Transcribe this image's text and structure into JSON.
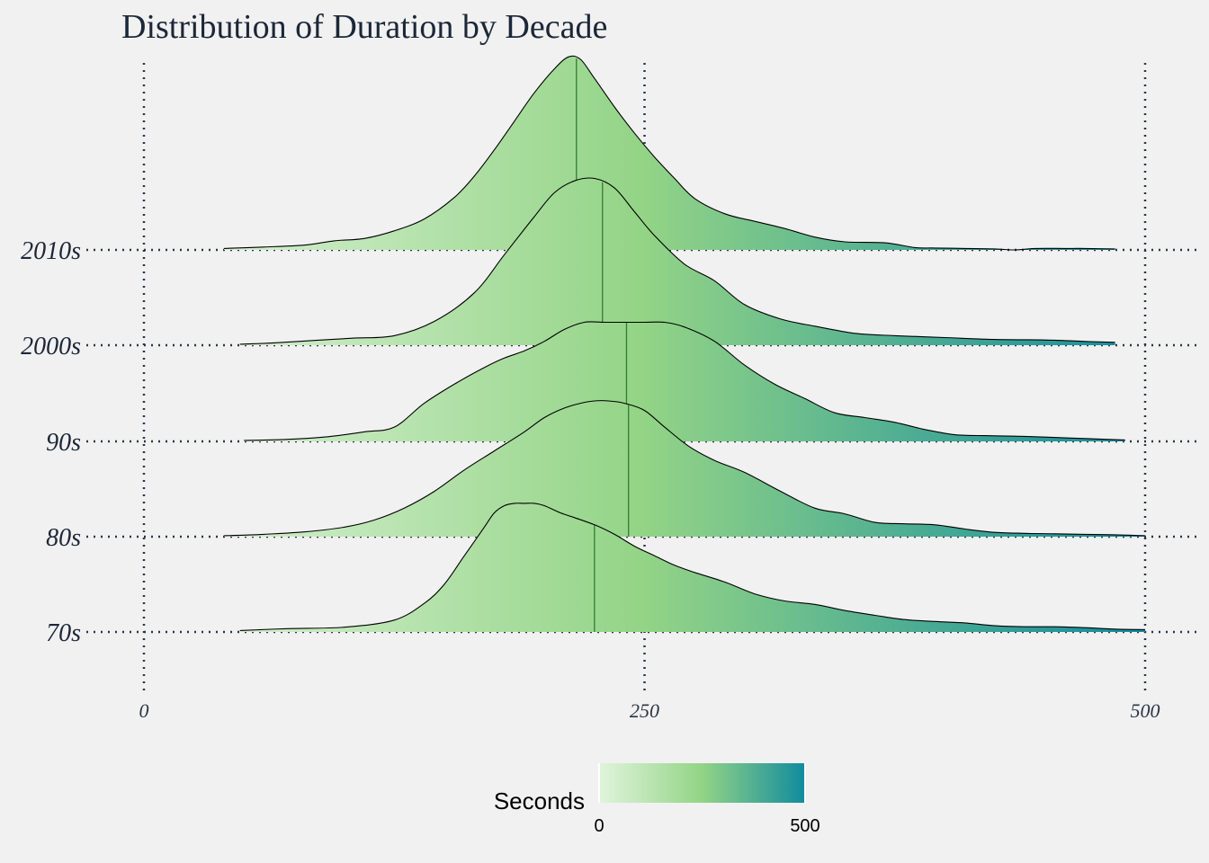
{
  "chart_data": {
    "type": "ridgeline",
    "title": "Distribution of Duration by Decade",
    "xlabel": "",
    "ylabel": "",
    "xlim": [
      0,
      500
    ],
    "x_ticks": [
      "0",
      "250",
      "500"
    ],
    "x_tick_values": [
      0,
      250,
      500
    ],
    "categories": [
      "70s",
      "80s",
      "90s",
      "2000s",
      "2010s"
    ],
    "legend": {
      "title": "Seconds",
      "min_label": "0",
      "max_label": "500",
      "colors": [
        "#e0f4dc",
        "#93d486",
        "#118b9e"
      ]
    },
    "series": [
      {
        "name": "70s",
        "median": 225,
        "x": [
          48,
          72,
          100,
          125,
          140,
          150,
          160,
          170,
          175,
          180,
          185,
          190,
          195,
          200,
          208,
          215,
          225,
          235,
          245,
          255,
          265,
          275,
          290,
          305,
          320,
          335,
          350,
          365,
          380,
          395,
          410,
          425,
          440,
          455,
          470,
          485,
          500
        ],
        "y": [
          0.3,
          0.7,
          1.0,
          2.5,
          6,
          10,
          16,
          22,
          25,
          26.5,
          27,
          27,
          27,
          26.5,
          25,
          24,
          22.5,
          20.5,
          18,
          16,
          14,
          12.5,
          10.5,
          8,
          6.5,
          5.8,
          4.5,
          3.5,
          2.6,
          2.2,
          1.9,
          1.3,
          1.1,
          1.1,
          0.9,
          0.6,
          0.5
        ]
      },
      {
        "name": "80s",
        "median": 242,
        "x": [
          40,
          60,
          80,
          100,
          115,
          130,
          145,
          160,
          175,
          190,
          200,
          210,
          218,
          225,
          232,
          240,
          250,
          260,
          272,
          285,
          300,
          318,
          335,
          350,
          365,
          380,
          395,
          410,
          425,
          440,
          455,
          470,
          485,
          500
        ],
        "y": [
          0.2,
          0.5,
          1.0,
          2.0,
          3.5,
          6,
          9.5,
          14,
          18,
          22,
          25,
          27,
          28,
          28.5,
          28.5,
          28,
          26.5,
          23,
          19,
          16,
          13.5,
          9.5,
          6,
          4.8,
          3,
          2.7,
          2.5,
          1.6,
          0.9,
          0.7,
          0.6,
          0.5,
          0.4,
          0.2
        ]
      },
      {
        "name": "90s",
        "median": 241,
        "x": [
          50,
          70,
          90,
          110,
          125,
          140,
          155,
          170,
          180,
          190,
          200,
          210,
          220,
          230,
          240,
          250,
          260,
          270,
          285,
          300,
          315,
          330,
          345,
          360,
          375,
          390,
          405,
          420,
          435,
          450,
          470,
          490
        ],
        "y": [
          0.2,
          0.4,
          0.9,
          2.0,
          3.0,
          8,
          12,
          15.5,
          17.5,
          19,
          21,
          23.5,
          25,
          25,
          25,
          25,
          25,
          24,
          21,
          16,
          12,
          9,
          6,
          5,
          4,
          2.5,
          1.4,
          1.2,
          1.1,
          0.9,
          0.6,
          0.3
        ]
      },
      {
        "name": "2000s",
        "median": 229,
        "x": [
          48,
          65,
          85,
          105,
          125,
          145,
          165,
          180,
          195,
          205,
          215,
          225,
          235,
          245,
          255,
          270,
          285,
          300,
          318,
          335,
          355,
          375,
          400,
          425,
          450,
          470,
          485
        ],
        "y": [
          0.2,
          0.5,
          1.0,
          1.5,
          2.0,
          5.0,
          11,
          19,
          27,
          32,
          34.5,
          35,
          33,
          28,
          23,
          17,
          13.5,
          8.5,
          5.5,
          4,
          2.5,
          2,
          1.6,
          1.2,
          1.1,
          0.8,
          0.6
        ]
      },
      {
        "name": "2010s",
        "median": 216,
        "x": [
          40,
          60,
          80,
          95,
          110,
          125,
          140,
          155,
          165,
          175,
          185,
          195,
          205,
          212,
          218,
          225,
          235,
          245,
          255,
          265,
          275,
          290,
          305,
          320,
          335,
          350,
          370,
          385,
          395,
          410,
          425,
          435,
          445,
          460,
          470,
          485
        ],
        "y": [
          0.3,
          0.6,
          1.0,
          1.9,
          2.4,
          4.0,
          6.5,
          11,
          15.5,
          21,
          27,
          33,
          38,
          40.5,
          40,
          36,
          30,
          24.5,
          19.5,
          15,
          10.8,
          7.6,
          6,
          4.5,
          2.7,
          1.7,
          1.5,
          0.5,
          0.4,
          0.3,
          0.2,
          0,
          0.3,
          0.3,
          0.3,
          0.2
        ]
      }
    ]
  }
}
